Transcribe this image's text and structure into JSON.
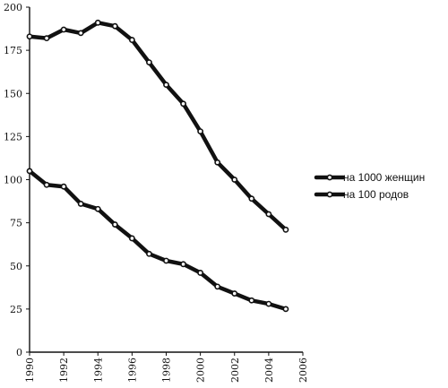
{
  "chart_data": {
    "type": "line",
    "title": "",
    "xlabel": "",
    "ylabel": "",
    "xlim": [
      1990,
      2006
    ],
    "ylim": [
      0,
      200
    ],
    "x_ticks": [
      "1990",
      "1992",
      "1994",
      "1996",
      "1998",
      "2000",
      "2002",
      "2004",
      "2006"
    ],
    "y_ticks": [
      "0",
      "25",
      "50",
      "75",
      "100",
      "125",
      "150",
      "175",
      "200"
    ],
    "x": [
      1990,
      1991,
      1992,
      1993,
      1994,
      1995,
      1996,
      1997,
      1998,
      1999,
      2000,
      2001,
      2002,
      2003,
      2004,
      2005
    ],
    "series": [
      {
        "name": "на 1000 женщин",
        "values": [
          183,
          182,
          187,
          185,
          191,
          189,
          181,
          168,
          155,
          144,
          128,
          110,
          100,
          89,
          80,
          71
        ]
      },
      {
        "name": "на 100 родов",
        "values": [
          105,
          97,
          96,
          86,
          83,
          74,
          66,
          57,
          53,
          51,
          46,
          38,
          34,
          30,
          28,
          25
        ]
      }
    ],
    "grid": false,
    "legend_position": "right",
    "colors": {
      "line": "#111111",
      "marker_fill": "#ffffff",
      "background": "#ffffff"
    }
  }
}
